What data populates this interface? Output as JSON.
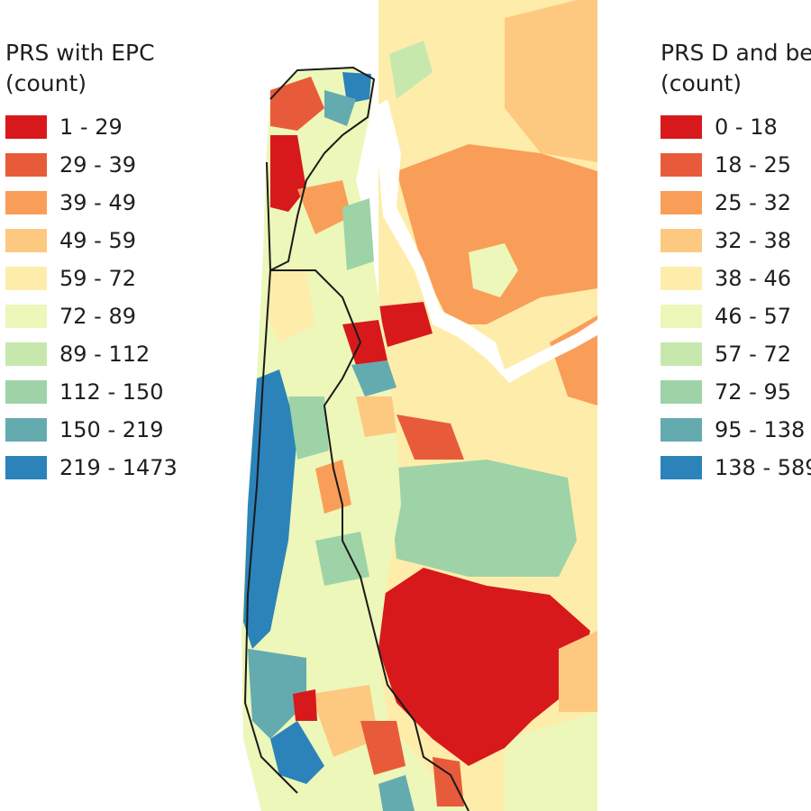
{
  "legend_left": {
    "title_line1": "PRS with EPC",
    "title_line2": "(count)",
    "classes": [
      {
        "label": "1 - 29",
        "color": "#d7191c"
      },
      {
        "label": "29 - 39",
        "color": "#e85b3a"
      },
      {
        "label": "39 - 49",
        "color": "#f99e59"
      },
      {
        "label": "49 - 59",
        "color": "#fdc980"
      },
      {
        "label": "59 - 72",
        "color": "#feedaa"
      },
      {
        "label": "72 - 89",
        "color": "#ecf7b9"
      },
      {
        "label": "89 - 112",
        "color": "#c7e8ad"
      },
      {
        "label": "112 - 150",
        "color": "#9dd3a7"
      },
      {
        "label": "150 - 219",
        "color": "#64abb0"
      },
      {
        "label": "219 - 1473",
        "color": "#2b83ba"
      }
    ]
  },
  "legend_right": {
    "title_line1": "PRS D and be",
    "title_line2": "(count)",
    "classes": [
      {
        "label": "0 - 18",
        "color": "#d7191c"
      },
      {
        "label": "18 - 25",
        "color": "#e85b3a"
      },
      {
        "label": "25 - 32",
        "color": "#f99e59"
      },
      {
        "label": "32 - 38",
        "color": "#fdc980"
      },
      {
        "label": "38 - 46",
        "color": "#feedaa"
      },
      {
        "label": "46 - 57",
        "color": "#ecf7b9"
      },
      {
        "label": "57 - 72",
        "color": "#c7e8ad"
      },
      {
        "label": "72 - 95",
        "color": "#9dd3a7"
      },
      {
        "label": "95 - 138",
        "color": "#64abb0"
      },
      {
        "label": "138 - 589",
        "color": "#2b83ba"
      }
    ]
  },
  "colors": {
    "river": "#ffffff",
    "boundary": "#1a1a1a"
  }
}
